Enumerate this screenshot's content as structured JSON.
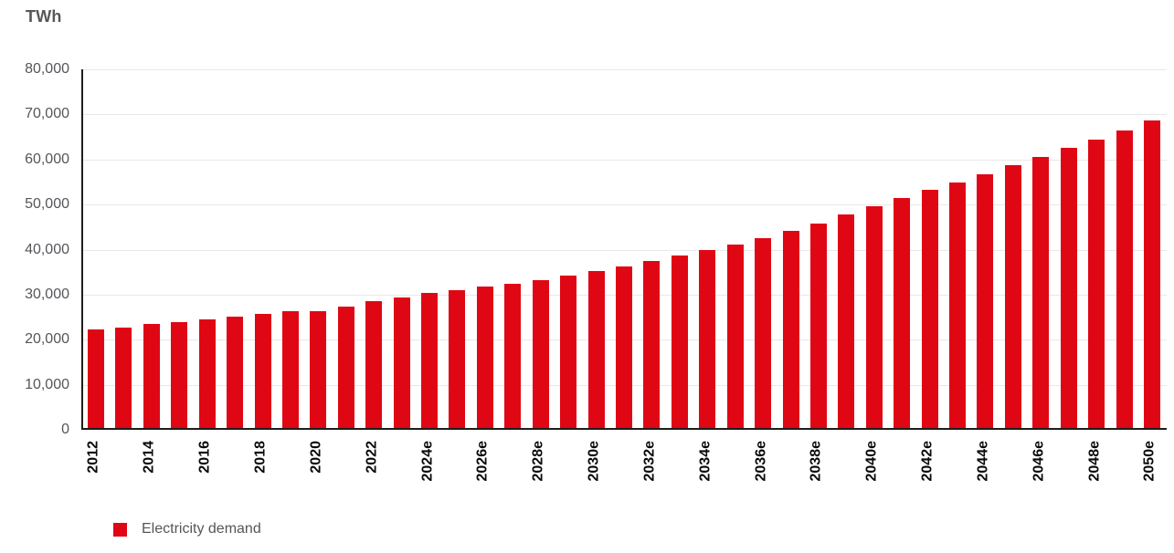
{
  "chart_data": {
    "type": "bar",
    "title": "",
    "unit": "TWh",
    "xlabel": "",
    "ylabel": "TWh",
    "ylim": [
      0,
      80000
    ],
    "ytick_step": 10000,
    "grid": true,
    "legend_position": "bottom-left",
    "series_name": "Electricity demand",
    "bar_color": "#e00714",
    "bars": [
      {
        "year": "2012",
        "tick": "2012",
        "value": 21900
      },
      {
        "year": "2013",
        "tick": "",
        "value": 22300
      },
      {
        "year": "2014",
        "tick": "2014",
        "value": 23100
      },
      {
        "year": "2015",
        "tick": "",
        "value": 23400
      },
      {
        "year": "2016",
        "tick": "2016",
        "value": 24100
      },
      {
        "year": "2017",
        "tick": "",
        "value": 24700
      },
      {
        "year": "2018",
        "tick": "2018",
        "value": 25400
      },
      {
        "year": "2019",
        "tick": "",
        "value": 26000
      },
      {
        "year": "2020",
        "tick": "2020",
        "value": 25900
      },
      {
        "year": "2021",
        "tick": "",
        "value": 27000
      },
      {
        "year": "2022",
        "tick": "2022",
        "value": 28100
      },
      {
        "year": "2023",
        "tick": "",
        "value": 29000
      },
      {
        "year": "2024e",
        "tick": "2024e",
        "value": 29900
      },
      {
        "year": "2025e",
        "tick": "",
        "value": 30600
      },
      {
        "year": "2026e",
        "tick": "2026e",
        "value": 31300
      },
      {
        "year": "2027e",
        "tick": "",
        "value": 32000
      },
      {
        "year": "2028e",
        "tick": "2028e",
        "value": 32900
      },
      {
        "year": "2029e",
        "tick": "",
        "value": 33900
      },
      {
        "year": "2030e",
        "tick": "2030e",
        "value": 34800
      },
      {
        "year": "2031e",
        "tick": "",
        "value": 35900
      },
      {
        "year": "2032e",
        "tick": "2032e",
        "value": 37100
      },
      {
        "year": "2033e",
        "tick": "",
        "value": 38200
      },
      {
        "year": "2034e",
        "tick": "2034e",
        "value": 39400
      },
      {
        "year": "2035e",
        "tick": "",
        "value": 40800
      },
      {
        "year": "2036e",
        "tick": "2036e",
        "value": 42200
      },
      {
        "year": "2037e",
        "tick": "",
        "value": 43800
      },
      {
        "year": "2038e",
        "tick": "2038e",
        "value": 45400
      },
      {
        "year": "2039e",
        "tick": "",
        "value": 47300
      },
      {
        "year": "2040e",
        "tick": "2040e",
        "value": 49200
      },
      {
        "year": "2041e",
        "tick": "",
        "value": 51000
      },
      {
        "year": "2042e",
        "tick": "2042e",
        "value": 52800
      },
      {
        "year": "2043e",
        "tick": "",
        "value": 54500
      },
      {
        "year": "2044e",
        "tick": "2044e",
        "value": 56300
      },
      {
        "year": "2045e",
        "tick": "",
        "value": 58300
      },
      {
        "year": "2046e",
        "tick": "2046e",
        "value": 60200
      },
      {
        "year": "2047e",
        "tick": "",
        "value": 62100
      },
      {
        "year": "2048e",
        "tick": "2048e",
        "value": 64000
      },
      {
        "year": "2049e",
        "tick": "",
        "value": 66000
      },
      {
        "year": "2050e",
        "tick": "2050e",
        "value": 68200
      }
    ]
  },
  "legend": {
    "label": "Electricity demand"
  }
}
